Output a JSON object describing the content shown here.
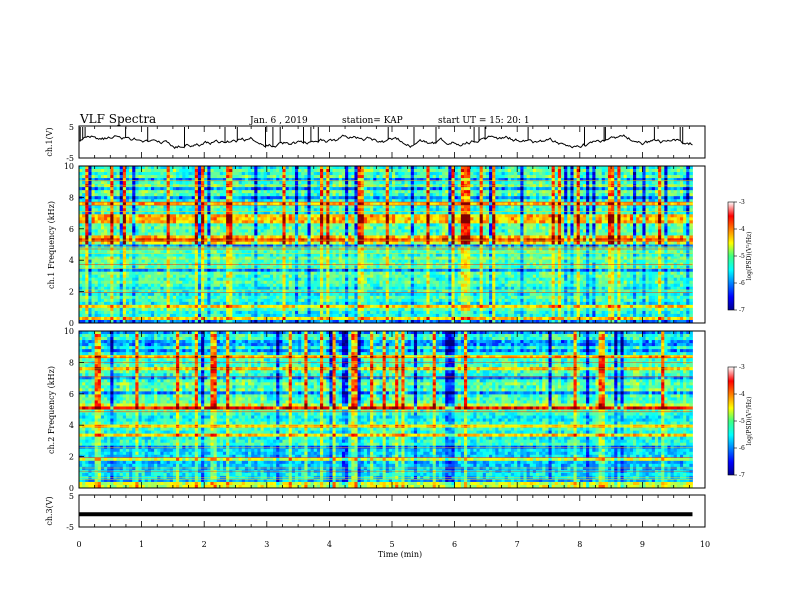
{
  "header": {
    "title": "VLF Spectra",
    "date": "Jan. 6 , 2019",
    "station": "station= KAP",
    "start": "start UT = 15: 20: 1"
  },
  "chart_data": [
    {
      "type": "line",
      "name": "ch1-waveform",
      "ylabel": "ch.1(V)",
      "ylim": [
        -5,
        5
      ],
      "yticks": [
        "5",
        "-5"
      ],
      "xlim": [
        0,
        10
      ],
      "approx_range": [
        -3,
        3
      ]
    },
    {
      "type": "heatmap",
      "name": "ch1-spectrogram",
      "ylabel": "ch.1 Frequency (kHz)",
      "xlim": [
        0,
        10
      ],
      "ylim": [
        0,
        10
      ],
      "yticks": [
        "0",
        "2",
        "4",
        "6",
        "8",
        "10"
      ],
      "data_end_min": 9.8,
      "colorbar": {
        "label": "log(PSD)(V²/Hz)",
        "range": [
          -7,
          -3
        ],
        "ticks": [
          "-3",
          "-4",
          "-5",
          "-6",
          "-7"
        ]
      },
      "dominant_level": -5
    },
    {
      "type": "heatmap",
      "name": "ch2-spectrogram",
      "ylabel": "ch.2 Frequency (kHz)",
      "xlim": [
        0,
        10
      ],
      "ylim": [
        0,
        10
      ],
      "yticks": [
        "0",
        "2",
        "4",
        "6",
        "8",
        "10"
      ],
      "data_end_min": 9.8,
      "colorbar": {
        "label": "log(PSD)(V²/Hz)",
        "range": [
          -7,
          -3
        ],
        "ticks": [
          "-3",
          "-4",
          "-5",
          "-6",
          "-7"
        ]
      },
      "dominant_level": -5
    },
    {
      "type": "line",
      "name": "ch3-waveform",
      "ylabel": "ch.3(V)",
      "ylim": [
        -5,
        5
      ],
      "yticks": [
        "5",
        "-5"
      ],
      "xlim": [
        0,
        10
      ],
      "xticks": [
        "0",
        "1",
        "2",
        "3",
        "4",
        "5",
        "6",
        "7",
        "8",
        "9",
        "10"
      ],
      "xlabel": "Time (min)",
      "value": -1
    }
  ],
  "colors": {
    "axis": "#000000",
    "trace": "#000000"
  }
}
